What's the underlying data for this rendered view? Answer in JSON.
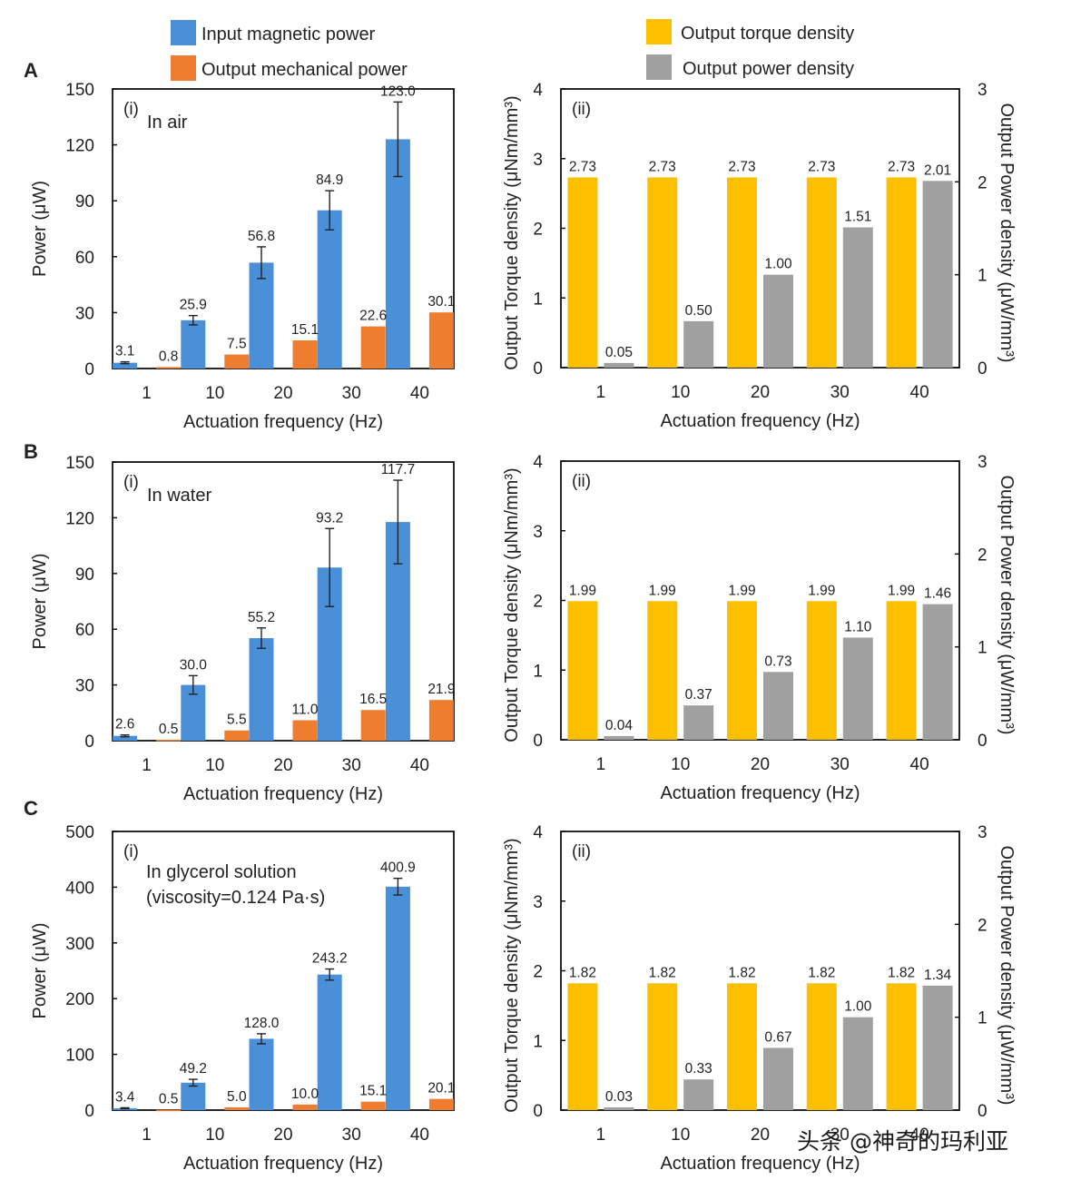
{
  "legend": {
    "left": [
      {
        "label": "Input magnetic power",
        "color": "#4a90d9"
      },
      {
        "label": "Output mechanical power",
        "color": "#ee7d2f"
      }
    ],
    "right": [
      {
        "label": "Output torque density",
        "color": "#fcc000"
      },
      {
        "label": "Output power density",
        "color": "#a0a0a0"
      }
    ]
  },
  "watermark": "头条 @神奇的玛利亚",
  "chart_data": [
    {
      "panel": "A",
      "sub": "(i)",
      "type": "bar",
      "annotation": [
        "In air"
      ],
      "title": "",
      "xlabel": "Actuation frequency (Hz)",
      "ylabel": "Power (μW)",
      "categories": [
        "1",
        "10",
        "20",
        "30",
        "40"
      ],
      "ylim": [
        0,
        150
      ],
      "yticks": [
        "0",
        "30",
        "60",
        "90",
        "120",
        "150"
      ],
      "series": [
        {
          "name": "Input magnetic power",
          "color": "#4a90d9",
          "values": [
            3.1,
            25.9,
            56.8,
            84.9,
            123.0
          ],
          "labels": [
            "3.1",
            "25.9",
            "56.8",
            "84.9",
            "123.0"
          ],
          "errors": [
            0.5,
            2.5,
            8.5,
            10.5,
            20.0
          ]
        },
        {
          "name": "Output mechanical power",
          "color": "#ee7d2f",
          "values": [
            0.8,
            7.5,
            15.1,
            22.6,
            30.1
          ],
          "labels": [
            "0.8",
            "7.5",
            "15.1",
            "22.6",
            "30.1"
          ]
        }
      ]
    },
    {
      "panel": "A",
      "sub": "(ii)",
      "type": "bar",
      "title": "",
      "xlabel": "Actuation frequency (Hz)",
      "ylabel": "Output Torque density (μNm/mm³)",
      "ylabel2": "Output Power density (μW/mm³)",
      "categories": [
        "1",
        "10",
        "20",
        "30",
        "40"
      ],
      "ylim": [
        0,
        4
      ],
      "yticks": [
        "0",
        "1",
        "2",
        "3",
        "4"
      ],
      "ylim2": [
        0,
        3
      ],
      "yticks2": [
        "0",
        "1",
        "2",
        "3"
      ],
      "series": [
        {
          "name": "Output torque density",
          "color": "#fcc000",
          "axis": "left",
          "values": [
            2.73,
            2.73,
            2.73,
            2.73,
            2.73
          ],
          "labels": [
            "2.73",
            "2.73",
            "2.73",
            "2.73",
            "2.73"
          ]
        },
        {
          "name": "Output power density",
          "color": "#a0a0a0",
          "axis": "right",
          "values": [
            0.05,
            0.5,
            1.0,
            1.51,
            2.01
          ],
          "labels": [
            "0.05",
            "0.50",
            "1.00",
            "1.51",
            "2.01"
          ]
        }
      ]
    },
    {
      "panel": "B",
      "sub": "(i)",
      "type": "bar",
      "annotation": [
        "In water"
      ],
      "title": "",
      "xlabel": "Actuation frequency (Hz)",
      "ylabel": "Power (μW)",
      "categories": [
        "1",
        "10",
        "20",
        "30",
        "40"
      ],
      "ylim": [
        0,
        150
      ],
      "yticks": [
        "0",
        "30",
        "60",
        "90",
        "120",
        "150"
      ],
      "series": [
        {
          "name": "Input magnetic power",
          "color": "#4a90d9",
          "values": [
            2.6,
            30.0,
            55.2,
            93.2,
            117.7
          ],
          "labels": [
            "2.6",
            "30.0",
            "55.2",
            "93.2",
            "117.7"
          ],
          "errors": [
            0.5,
            5.0,
            5.5,
            21.0,
            22.5
          ]
        },
        {
          "name": "Output mechanical power",
          "color": "#ee7d2f",
          "values": [
            0.5,
            5.5,
            11.0,
            16.5,
            21.9
          ],
          "labels": [
            "0.5",
            "5.5",
            "11.0",
            "16.5",
            "21.9"
          ]
        }
      ]
    },
    {
      "panel": "B",
      "sub": "(ii)",
      "type": "bar",
      "title": "",
      "xlabel": "Actuation frequency (Hz)",
      "ylabel": "Output Torque density (μNm/mm³)",
      "ylabel2": "Output Power density (μW/mm³)",
      "categories": [
        "1",
        "10",
        "20",
        "30",
        "40"
      ],
      "ylim": [
        0,
        4
      ],
      "yticks": [
        "0",
        "1",
        "2",
        "3",
        "4"
      ],
      "ylim2": [
        0,
        3
      ],
      "yticks2": [
        "0",
        "1",
        "2",
        "3"
      ],
      "series": [
        {
          "name": "Output torque density",
          "color": "#fcc000",
          "axis": "left",
          "values": [
            1.99,
            1.99,
            1.99,
            1.99,
            1.99
          ],
          "labels": [
            "1.99",
            "1.99",
            "1.99",
            "1.99",
            "1.99"
          ]
        },
        {
          "name": "Output power density",
          "color": "#a0a0a0",
          "axis": "right",
          "values": [
            0.04,
            0.37,
            0.73,
            1.1,
            1.46
          ],
          "labels": [
            "0.04",
            "0.37",
            "0.73",
            "1.10",
            "1.46"
          ]
        }
      ]
    },
    {
      "panel": "C",
      "sub": "(i)",
      "type": "bar",
      "annotation": [
        "In glycerol solution",
        "(viscosity=0.124 Pa·s)"
      ],
      "title": "",
      "xlabel": "Actuation frequency (Hz)",
      "ylabel": "Power (μW)",
      "categories": [
        "1",
        "10",
        "20",
        "30",
        "40"
      ],
      "ylim": [
        0,
        500
      ],
      "yticks": [
        "0",
        "100",
        "200",
        "300",
        "400",
        "500"
      ],
      "series": [
        {
          "name": "Input magnetic power",
          "color": "#4a90d9",
          "values": [
            3.4,
            49.2,
            128.0,
            243.2,
            400.9
          ],
          "labels": [
            "3.4",
            "49.2",
            "128.0",
            "243.2",
            "400.9"
          ],
          "errors": [
            0.8,
            6.0,
            9.0,
            10.0,
            15.0
          ]
        },
        {
          "name": "Output mechanical power",
          "color": "#ee7d2f",
          "values": [
            0.5,
            5.0,
            10.0,
            15.1,
            20.1
          ],
          "labels": [
            "0.5",
            "5.0",
            "10.0",
            "15.1",
            "20.1"
          ]
        }
      ]
    },
    {
      "panel": "C",
      "sub": "(ii)",
      "type": "bar",
      "title": "",
      "xlabel": "Actuation frequency (Hz)",
      "ylabel": "Output Torque density (μNm/mm³)",
      "ylabel2": "Output Power density (μW/mm³)",
      "categories": [
        "1",
        "10",
        "20",
        "30",
        "40"
      ],
      "ylim": [
        0,
        4
      ],
      "yticks": [
        "0",
        "1",
        "2",
        "3",
        "4"
      ],
      "ylim2": [
        0,
        3
      ],
      "yticks2": [
        "0",
        "1",
        "2",
        "3"
      ],
      "series": [
        {
          "name": "Output torque density",
          "color": "#fcc000",
          "axis": "left",
          "values": [
            1.82,
            1.82,
            1.82,
            1.82,
            1.82
          ],
          "labels": [
            "1.82",
            "1.82",
            "1.82",
            "1.82",
            "1.82"
          ]
        },
        {
          "name": "Output power density",
          "color": "#a0a0a0",
          "axis": "right",
          "values": [
            0.03,
            0.33,
            0.67,
            1.0,
            1.34
          ],
          "labels": [
            "0.03",
            "0.33",
            "0.67",
            "1.00",
            "1.34"
          ]
        }
      ]
    }
  ]
}
